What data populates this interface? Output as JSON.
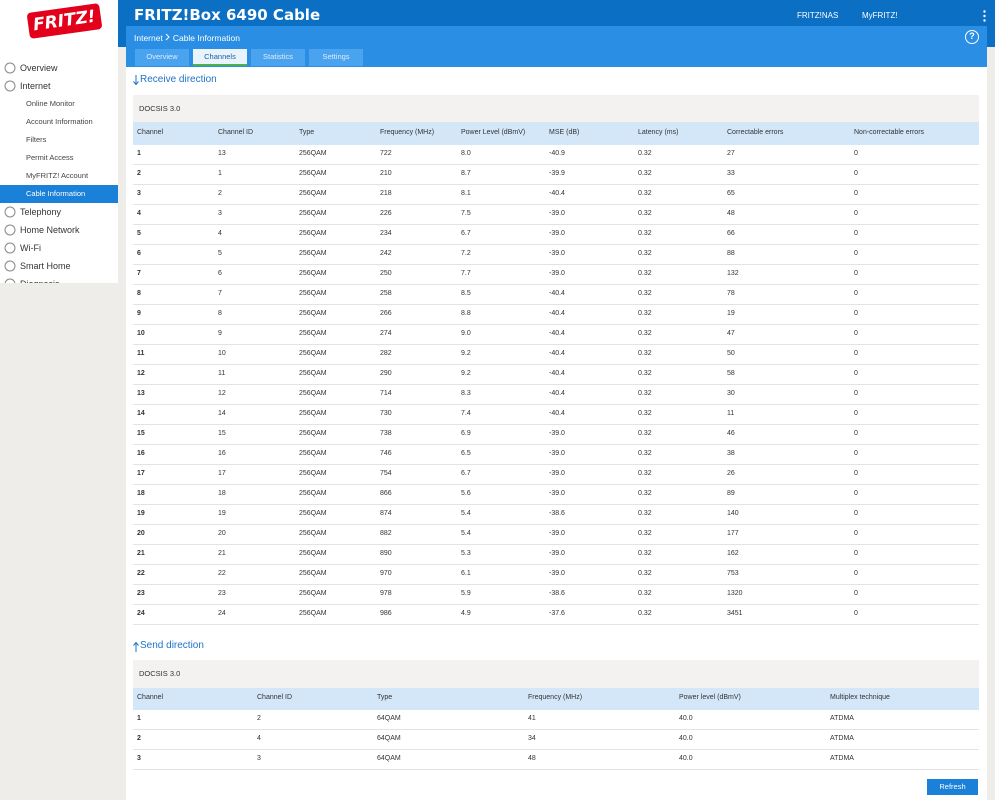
{
  "header": {
    "logo": "FRITZ!",
    "title": "FRITZ!Box 6490 Cable",
    "links": [
      "FRITZ!NAS",
      "MyFRITZ!"
    ],
    "help": "?"
  },
  "breadcrumb": [
    "Internet",
    "Cable Information"
  ],
  "tabs": [
    "Overview",
    "Channels",
    "Statistics",
    "Settings"
  ],
  "active_tab": 1,
  "sidebar": [
    {
      "label": "Overview",
      "level": 1
    },
    {
      "label": "Internet",
      "level": 1
    },
    {
      "label": "Online Monitor",
      "level": 2
    },
    {
      "label": "Account Information",
      "level": 2
    },
    {
      "label": "Filters",
      "level": 2
    },
    {
      "label": "Permit Access",
      "level": 2
    },
    {
      "label": "MyFRITZ! Account",
      "level": 2
    },
    {
      "label": "Cable Information",
      "level": 2,
      "selected": true
    },
    {
      "label": "Telephony",
      "level": 1
    },
    {
      "label": "Home Network",
      "level": 1
    },
    {
      "label": "Wi-Fi",
      "level": 1
    },
    {
      "label": "Smart Home",
      "level": 1
    },
    {
      "label": "Diagnosis",
      "level": 1
    }
  ],
  "receive": {
    "title": "Receive direction",
    "subtitle": "DOCSIS 3.0",
    "columns": [
      "Channel",
      "Channel ID",
      "Type",
      "Frequency (MHz)",
      "Power Level (dBmV)",
      "MSE (dB)",
      "Latency (ms)",
      "Correctable errors",
      "Non-correctable errors"
    ],
    "rows": [
      [
        "1",
        "13",
        "256QAM",
        "722",
        "8.0",
        "-40.9",
        "0.32",
        "27",
        "0"
      ],
      [
        "2",
        "1",
        "256QAM",
        "210",
        "8.7",
        "-39.9",
        "0.32",
        "33",
        "0"
      ],
      [
        "3",
        "2",
        "256QAM",
        "218",
        "8.1",
        "-40.4",
        "0.32",
        "65",
        "0"
      ],
      [
        "4",
        "3",
        "256QAM",
        "226",
        "7.5",
        "-39.0",
        "0.32",
        "48",
        "0"
      ],
      [
        "5",
        "4",
        "256QAM",
        "234",
        "6.7",
        "-39.0",
        "0.32",
        "66",
        "0"
      ],
      [
        "6",
        "5",
        "256QAM",
        "242",
        "7.2",
        "-39.0",
        "0.32",
        "88",
        "0"
      ],
      [
        "7",
        "6",
        "256QAM",
        "250",
        "7.7",
        "-39.0",
        "0.32",
        "132",
        "0"
      ],
      [
        "8",
        "7",
        "256QAM",
        "258",
        "8.5",
        "-40.4",
        "0.32",
        "78",
        "0"
      ],
      [
        "9",
        "8",
        "256QAM",
        "266",
        "8.8",
        "-40.4",
        "0.32",
        "19",
        "0"
      ],
      [
        "10",
        "9",
        "256QAM",
        "274",
        "9.0",
        "-40.4",
        "0.32",
        "47",
        "0"
      ],
      [
        "11",
        "10",
        "256QAM",
        "282",
        "9.2",
        "-40.4",
        "0.32",
        "50",
        "0"
      ],
      [
        "12",
        "11",
        "256QAM",
        "290",
        "9.2",
        "-40.4",
        "0.32",
        "58",
        "0"
      ],
      [
        "13",
        "12",
        "256QAM",
        "714",
        "8.3",
        "-40.4",
        "0.32",
        "30",
        "0"
      ],
      [
        "14",
        "14",
        "256QAM",
        "730",
        "7.4",
        "-40.4",
        "0.32",
        "11",
        "0"
      ],
      [
        "15",
        "15",
        "256QAM",
        "738",
        "6.9",
        "-39.0",
        "0.32",
        "46",
        "0"
      ],
      [
        "16",
        "16",
        "256QAM",
        "746",
        "6.5",
        "-39.0",
        "0.32",
        "38",
        "0"
      ],
      [
        "17",
        "17",
        "256QAM",
        "754",
        "6.7",
        "-39.0",
        "0.32",
        "26",
        "0"
      ],
      [
        "18",
        "18",
        "256QAM",
        "866",
        "5.6",
        "-39.0",
        "0.32",
        "89",
        "0"
      ],
      [
        "19",
        "19",
        "256QAM",
        "874",
        "5.4",
        "-38.6",
        "0.32",
        "140",
        "0"
      ],
      [
        "20",
        "20",
        "256QAM",
        "882",
        "5.4",
        "-39.0",
        "0.32",
        "177",
        "0"
      ],
      [
        "21",
        "21",
        "256QAM",
        "890",
        "5.3",
        "-39.0",
        "0.32",
        "162",
        "0"
      ],
      [
        "22",
        "22",
        "256QAM",
        "970",
        "6.1",
        "-39.0",
        "0.32",
        "753",
        "0"
      ],
      [
        "23",
        "23",
        "256QAM",
        "978",
        "5.9",
        "-38.6",
        "0.32",
        "1320",
        "0"
      ],
      [
        "24",
        "24",
        "256QAM",
        "986",
        "4.9",
        "-37.6",
        "0.32",
        "3451",
        "0"
      ]
    ]
  },
  "send": {
    "title": "Send direction",
    "subtitle": "DOCSIS 3.0",
    "columns": [
      "Channel",
      "Channel ID",
      "Type",
      "Frequency (MHz)",
      "Power level (dBmV)",
      "Multiplex technique"
    ],
    "rows": [
      [
        "1",
        "2",
        "64QAM",
        "41",
        "40.0",
        "ATDMA"
      ],
      [
        "2",
        "4",
        "64QAM",
        "34",
        "40.0",
        "ATDMA"
      ],
      [
        "3",
        "3",
        "64QAM",
        "48",
        "40.0",
        "ATDMA"
      ]
    ]
  },
  "refresh": "Refresh"
}
